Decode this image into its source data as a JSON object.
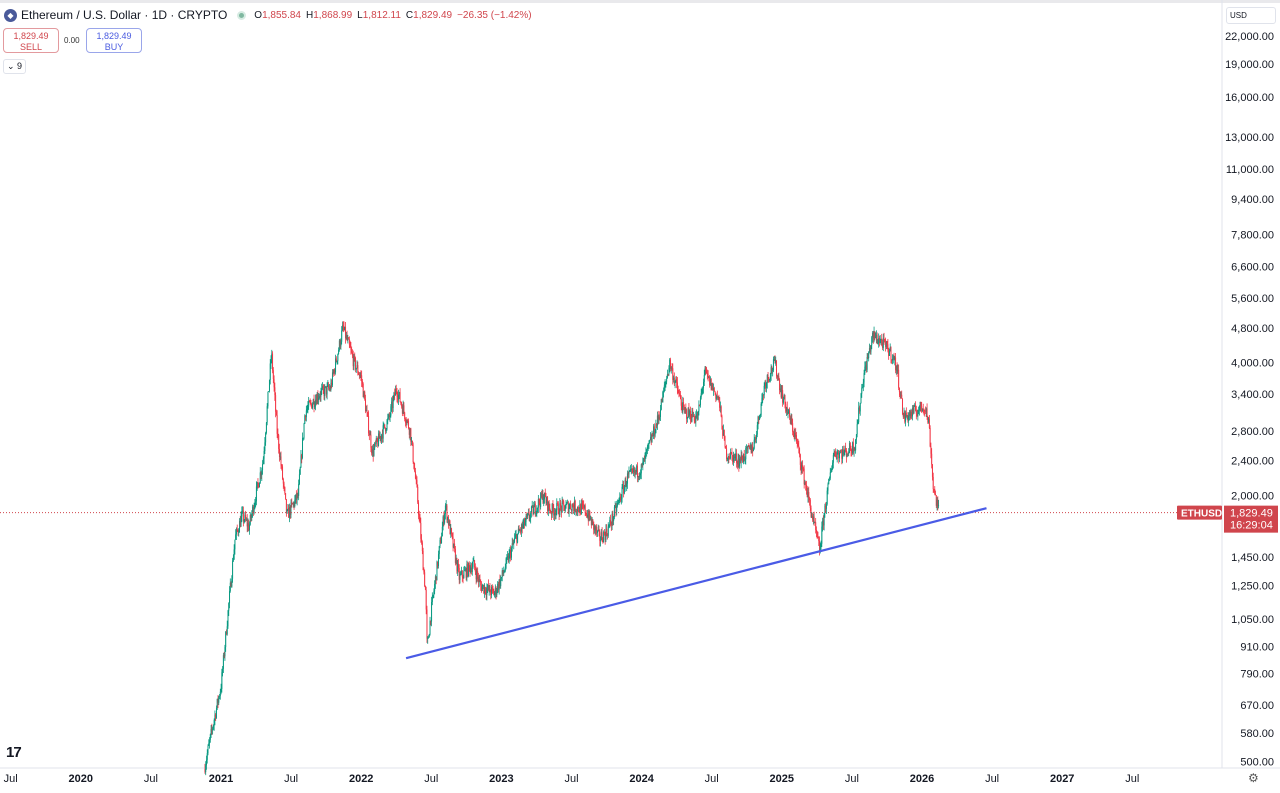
{
  "header": {
    "symbol": "Ethereum / U.S. Dollar · 1D · CRYPTO",
    "open_label": "O",
    "open": "1,855.84",
    "high_label": "H",
    "high": "1,868.99",
    "low_label": "L",
    "low": "1,812.11",
    "close_label": "C",
    "close": "1,829.49",
    "change": "−26.35 (−1.42%)"
  },
  "trade": {
    "sell_price": "1,829.49",
    "sell_label": "SELL",
    "spread": "0.00",
    "buy_price": "1,829.49",
    "buy_label": "BUY"
  },
  "indicators_toggle": "9",
  "currency": "USD",
  "price_tag": {
    "symbol": "ETHUSD",
    "price": "1,829.49",
    "countdown": "16:29:04"
  },
  "colors": {
    "up": "#089981",
    "down": "#f23645",
    "trendline": "#4a5be6",
    "tag": "#d0454c"
  },
  "chart_data": {
    "type": "candlestick",
    "title": "Ethereum / U.S. Dollar · 1D",
    "scale": "log",
    "ylim": [
      480,
      23500
    ],
    "xlim": [
      2019.47,
      2027.87
    ],
    "y_ticks": [
      22000,
      19000,
      16000,
      13000,
      11000,
      9400,
      7800,
      6600,
      5600,
      4800,
      4000,
      3400,
      2800,
      2400,
      2000,
      1450,
      1250,
      1050,
      910,
      790,
      670,
      580,
      500
    ],
    "y_tick_labels": [
      "22,000.00",
      "19,000.00",
      "16,000.00",
      "13,000.00",
      "11,000.00",
      "9,400.00",
      "7,800.00",
      "6,600.00",
      "5,600.00",
      "4,800.00",
      "4,000.00",
      "3,400.00",
      "2,800.00",
      "2,400.00",
      "2,000.00",
      "1,450.00",
      "1,250.00",
      "1,050.00",
      "910.00",
      "790.00",
      "670.00",
      "580.00",
      "500.00"
    ],
    "x_ticks": [
      {
        "t": 2019.5,
        "label": "Jul"
      },
      {
        "t": 2020,
        "label": "2020"
      },
      {
        "t": 2020.5,
        "label": "Jul"
      },
      {
        "t": 2021,
        "label": "2021"
      },
      {
        "t": 2021.5,
        "label": "Jul"
      },
      {
        "t": 2022,
        "label": "2022"
      },
      {
        "t": 2022.5,
        "label": "Jul"
      },
      {
        "t": 2023,
        "label": "2023"
      },
      {
        "t": 2023.5,
        "label": "Jul"
      },
      {
        "t": 2024,
        "label": "2024"
      },
      {
        "t": 2024.5,
        "label": "Jul"
      },
      {
        "t": 2025,
        "label": "2025"
      },
      {
        "t": 2025.5,
        "label": "Jul"
      },
      {
        "t": 2026,
        "label": "2026"
      },
      {
        "t": 2026.5,
        "label": "Jul"
      },
      {
        "t": 2027,
        "label": "2027"
      },
      {
        "t": 2027.5,
        "label": "Jul"
      }
    ],
    "last_price": 1829.49,
    "price_path": [
      [
        2020.88,
        480
      ],
      [
        2020.95,
        620
      ],
      [
        2021.0,
        740
      ],
      [
        2021.1,
        1600
      ],
      [
        2021.15,
        1800
      ],
      [
        2021.2,
        1700
      ],
      [
        2021.3,
        2400
      ],
      [
        2021.36,
        4200
      ],
      [
        2021.4,
        2800
      ],
      [
        2021.47,
        1800
      ],
      [
        2021.55,
        2000
      ],
      [
        2021.6,
        3100
      ],
      [
        2021.7,
        3400
      ],
      [
        2021.78,
        3500
      ],
      [
        2021.87,
        4800
      ],
      [
        2021.95,
        4000
      ],
      [
        2022.0,
        3700
      ],
      [
        2022.08,
        2500
      ],
      [
        2022.2,
        3000
      ],
      [
        2022.25,
        3500
      ],
      [
        2022.35,
        2800
      ],
      [
        2022.4,
        2000
      ],
      [
        2022.46,
        1200
      ],
      [
        2022.47,
        900
      ],
      [
        2022.5,
        1100
      ],
      [
        2022.6,
        1900
      ],
      [
        2022.7,
        1300
      ],
      [
        2022.8,
        1400
      ],
      [
        2022.85,
        1250
      ],
      [
        2022.95,
        1200
      ],
      [
        2023.0,
        1300
      ],
      [
        2023.1,
        1600
      ],
      [
        2023.2,
        1800
      ],
      [
        2023.3,
        2000
      ],
      [
        2023.35,
        1850
      ],
      [
        2023.5,
        1900
      ],
      [
        2023.6,
        1850
      ],
      [
        2023.7,
        1600
      ],
      [
        2023.75,
        1650
      ],
      [
        2023.8,
        1800
      ],
      [
        2023.9,
        2200
      ],
      [
        2024.0,
        2300
      ],
      [
        2024.12,
        3000
      ],
      [
        2024.2,
        4000
      ],
      [
        2024.3,
        3100
      ],
      [
        2024.4,
        3000
      ],
      [
        2024.45,
        3800
      ],
      [
        2024.55,
        3300
      ],
      [
        2024.6,
        2500
      ],
      [
        2024.7,
        2400
      ],
      [
        2024.8,
        2600
      ],
      [
        2024.88,
        3600
      ],
      [
        2024.95,
        4000
      ],
      [
        2025.0,
        3400
      ],
      [
        2025.1,
        2700
      ],
      [
        2025.2,
        1900
      ],
      [
        2025.27,
        1500
      ],
      [
        2025.3,
        1800
      ],
      [
        2025.37,
        2500
      ],
      [
        2025.45,
        2500
      ],
      [
        2025.52,
        2600
      ],
      [
        2025.58,
        3700
      ],
      [
        2025.65,
        4600
      ],
      [
        2025.7,
        4500
      ],
      [
        2025.78,
        4200
      ],
      [
        2025.82,
        3900
      ],
      [
        2025.87,
        3000
      ],
      [
        2025.95,
        3100
      ],
      [
        2026.02,
        3200
      ],
      [
        2026.05,
        2900
      ],
      [
        2026.08,
        2100
      ],
      [
        2026.12,
        1829.49
      ]
    ],
    "trendline": [
      [
        2022.32,
        856
      ],
      [
        2026.46,
        1873
      ]
    ]
  }
}
